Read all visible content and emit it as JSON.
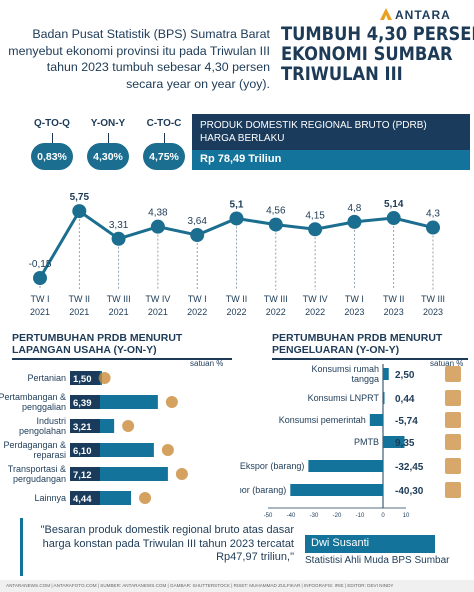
{
  "brand": "ANTARA",
  "intro": "Badan Pusat Statistik (BPS) Sumatra Barat menyebut ekonomi provinsi itu pada Triwulan III tahun 2023 tumbuh sebesar 4,30 persen secara year on year (yoy).",
  "headline": [
    "TUMBUH 4,30 PERSEN",
    "EKONOMI SUMBAR",
    "TRIWULAN III"
  ],
  "growth_boxes": [
    {
      "label": "Q-TO-Q",
      "value": "0,83%"
    },
    {
      "label": "Y-ON-Y",
      "value": "4,30%"
    },
    {
      "label": "C-TO-C",
      "value": "4,75%"
    }
  ],
  "pdrb": {
    "title": "PRODUK DOMESTIK REGIONAL BRUTO (PDRB) HARGA BERLAKU",
    "value": "Rp 78,49 Triliun"
  },
  "sector_section": {
    "title_line1": "PERTUMBUHAN PRDB MENURUT",
    "title_line2": "LAPANGAN USAHA (Y-ON-Y)",
    "unit": "satuan %"
  },
  "expenditure_section": {
    "title_line1": "PERTUMBUHAN PRDB MENURUT",
    "title_line2": "PENGELUARAN (Y-ON-Y)",
    "unit": "satuan %"
  },
  "quote": "\"Besaran produk domestik regional bruto atas dasar harga konstan pada Triwulan III tahun 2023 tercatat Rp47,97 triliun,\"",
  "person": {
    "name": "Dwi Susanti",
    "role": "Statistisi Ahli Muda BPS Sumbar"
  },
  "footer": "ANTARANEWS.COM  |  ANTARAFOTO.COM  |  SUMBER: ANTARANEWS.COM  |  GAMBAR: SHUTTERSTOCK  |  RISET: MUHAMMAD ZULFIKAR  |  INFOGRAFIS: IRIE  |  EDITOR: DEVI NINDY",
  "colors": {
    "navy": "#1d3b57",
    "teal": "#14739a",
    "accent": "#1b6e8f",
    "bar_label": "#1a3b5c"
  },
  "chart_data": [
    {
      "type": "line",
      "categories": [
        "TW I 2021",
        "TW II 2021",
        "TW III 2021",
        "TW IV 2021",
        "TW I 2022",
        "TW II 2022",
        "TW III 2022",
        "TW IV 2022",
        "TW I 2023",
        "TW II 2023",
        "TW III 2023"
      ],
      "values": [
        -0.15,
        5.75,
        3.31,
        4.38,
        3.64,
        5.1,
        4.56,
        4.15,
        4.8,
        5.14,
        4.3
      ],
      "value_labels": [
        "-0,15",
        "5,75",
        "3,31",
        "4,38",
        "3,64",
        "5,1",
        "4,56",
        "4,15",
        "4,8",
        "5,14",
        "4,3"
      ],
      "ylim": [
        -0.5,
        6.2
      ]
    },
    {
      "type": "bar",
      "title": "PERTUMBUHAN PRDB MENURUT LAPANGAN USAHA (Y-ON-Y)",
      "unit": "satuan %",
      "categories": [
        "Pertanian",
        "Pertambangan & penggalian",
        "Industri pengolahan",
        "Perdagangan & reparasi",
        "Transportasi & pergudangan",
        "Lainnya"
      ],
      "values": [
        1.5,
        6.39,
        3.21,
        6.1,
        7.12,
        4.44
      ],
      "value_labels": [
        "1,50",
        "6,39",
        "3,21",
        "6,10",
        "7,12",
        "4,44"
      ],
      "xlim": [
        0,
        8
      ]
    },
    {
      "type": "bar",
      "title": "PERTUMBUHAN PRDB MENURUT PENGELUARAN (Y-ON-Y)",
      "unit": "satuan %",
      "categories": [
        "Konsumsi rumah tangga",
        "Konsumsi LNPRT",
        "Konsumsi pemerintah",
        "PMTB",
        "Ekspor (barang)",
        "Impor (barang)"
      ],
      "values": [
        2.5,
        0.44,
        -5.74,
        9.35,
        -32.45,
        -40.3
      ],
      "value_labels": [
        "2,50",
        "0,44",
        "-5,74",
        "9,35",
        "-32,45",
        "-40,30"
      ],
      "xlim": [
        -50,
        10
      ],
      "xticks": [
        "-50",
        "-40",
        "-30",
        "-20",
        "-10",
        "0",
        "10"
      ]
    }
  ]
}
